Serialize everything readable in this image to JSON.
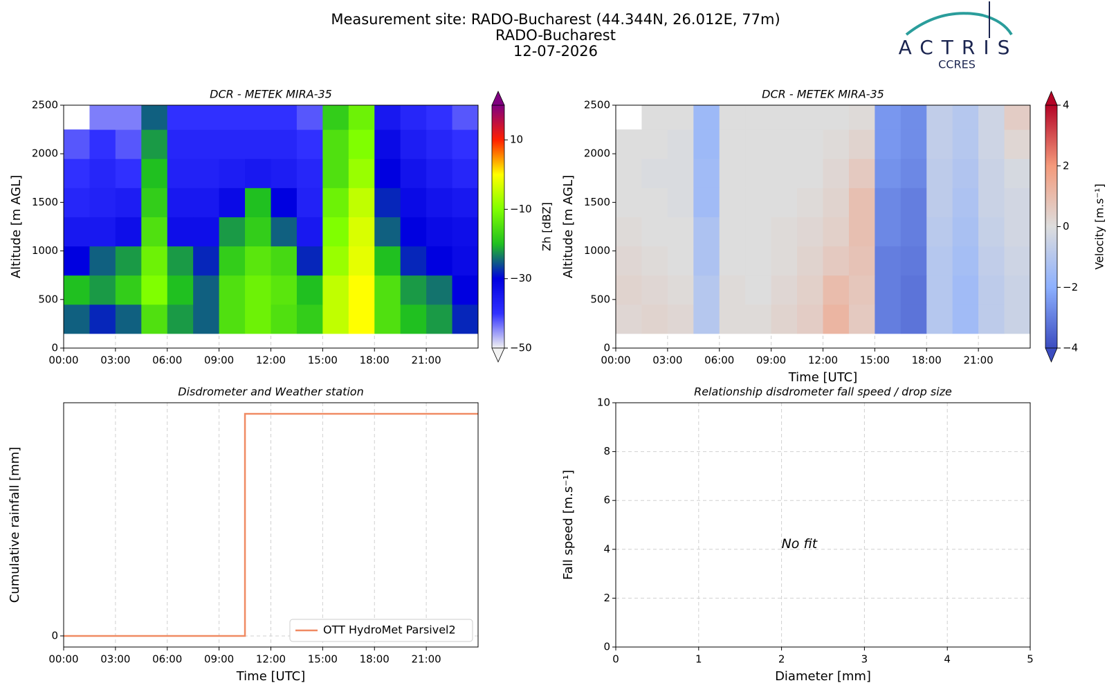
{
  "header": {
    "title": [
      "Measurement site: RADO-Bucharest (44.344N, 26.012E, 77m)",
      "RADO-Bucharest",
      "12-07-2026"
    ],
    "logo": {
      "name": "ACTRIS",
      "subtitle": "CCRES"
    }
  },
  "chart_data": [
    {
      "type": "heatmap",
      "title": "DCR - METEK MIRA-35",
      "y_label": "Altitude [m AGL]",
      "x_edges": [
        0,
        1.5,
        3,
        4.5,
        6,
        7.5,
        9,
        10.5,
        12,
        13.5,
        15,
        16.5,
        18,
        19.5,
        21,
        22.5,
        24
      ],
      "y_edges": [
        150,
        450,
        750,
        1050,
        1350,
        1650,
        1950,
        2250,
        2500
      ],
      "z": [
        [
          -25,
          -28,
          -25,
          -15,
          -22,
          -25,
          -15,
          -12,
          -15,
          -18,
          -5,
          0,
          -15,
          -20,
          -22,
          -28
        ],
        [
          -20,
          -22,
          -18,
          -10,
          -20,
          -25,
          -15,
          -12,
          -14,
          -20,
          -5,
          0,
          -15,
          -22,
          -24,
          -30
        ],
        [
          -30,
          -25,
          -22,
          -12,
          -22,
          -28,
          -18,
          -14,
          -16,
          -28,
          -8,
          -2,
          -20,
          -28,
          -30,
          -32
        ],
        [
          -35,
          -35,
          -33,
          -15,
          -33,
          -33,
          -22,
          -18,
          -25,
          -35,
          -10,
          -3,
          -25,
          -30,
          -32,
          -33
        ],
        [
          -38,
          -37,
          -36,
          -18,
          -35,
          -35,
          -32,
          -20,
          -30,
          -37,
          -12,
          -5,
          -28,
          -32,
          -34,
          -35
        ],
        [
          -40,
          -38,
          -40,
          -20,
          -37,
          -37,
          -36,
          -35,
          -36,
          -38,
          -15,
          -8,
          -30,
          -34,
          -36,
          -38
        ],
        [
          -42,
          -40,
          -42,
          -22,
          -38,
          -38,
          -38,
          -38,
          -38,
          -40,
          -15,
          -10,
          -32,
          -36,
          -38,
          -40
        ],
        [
          null,
          -44,
          -44,
          -25,
          -40,
          -40,
          -40,
          -40,
          -40,
          -42,
          -18,
          -12,
          -35,
          -38,
          -40,
          -42
        ]
      ],
      "xlim": [
        0,
        24
      ],
      "ylim": [
        0,
        2500
      ],
      "xticks": [
        {
          "value": 0,
          "label": "00:00"
        },
        {
          "value": 3,
          "label": "03:00"
        },
        {
          "value": 6,
          "label": "06:00"
        },
        {
          "value": 9,
          "label": "09:00"
        },
        {
          "value": 12,
          "label": "12:00"
        },
        {
          "value": 15,
          "label": "15:00"
        },
        {
          "value": 18,
          "label": "18:00"
        },
        {
          "value": 21,
          "label": "21:00"
        }
      ],
      "yticks": [
        0,
        500,
        1000,
        1500,
        2000,
        2500
      ],
      "grid": true,
      "colorbar": {
        "label": "Zh [dBZ]",
        "lim": [
          -50,
          20
        ],
        "ticks": [
          {
            "value": -50,
            "label": "−50"
          },
          {
            "value": -30,
            "label": "−30"
          },
          {
            "value": -10,
            "label": "−10"
          },
          10
        ],
        "colors": [
          "#f2f2f2",
          "#3030ff",
          "#0000e0",
          "#20c020",
          "#80ff00",
          "#ffff00",
          "#ff2000",
          "#800080"
        ]
      }
    },
    {
      "type": "heatmap",
      "title": "DCR - METEK MIRA-35",
      "y_label": "Altitude [m AGL]",
      "x_label": "Time [UTC]",
      "x_edges": [
        0,
        1.5,
        3,
        4.5,
        6,
        7.5,
        9,
        10.5,
        12,
        13.5,
        15,
        16.5,
        18,
        19.5,
        21,
        22.5,
        24
      ],
      "y_edges": [
        150,
        450,
        750,
        1050,
        1350,
        1650,
        1950,
        2250,
        2500
      ],
      "z": [
        [
          0.2,
          0.3,
          0.2,
          -1,
          0.1,
          0.1,
          0.3,
          0.5,
          1.2,
          0.6,
          -3,
          -3.2,
          -1,
          -1.5,
          -0.8,
          -0.5
        ],
        [
          0.3,
          0.2,
          0.1,
          -1,
          0.1,
          0,
          0.2,
          0.4,
          1,
          0.7,
          -3,
          -3.2,
          -1,
          -1.5,
          -0.8,
          -0.5
        ],
        [
          0.2,
          0.1,
          0,
          -1.2,
          0,
          0,
          0.1,
          0.3,
          0.6,
          0.8,
          -3,
          -3.1,
          -1,
          -1.4,
          -0.7,
          -0.4
        ],
        [
          0.1,
          0,
          0,
          -1.2,
          0,
          0,
          0.1,
          0.2,
          0.4,
          0.9,
          -2.8,
          -3,
          -0.9,
          -1.3,
          -0.6,
          -0.3
        ],
        [
          0,
          0,
          -0.1,
          -1.5,
          0,
          0,
          0,
          0.1,
          0.3,
          0.9,
          -2.8,
          -3,
          -0.8,
          -1.2,
          -0.5,
          -0.3
        ],
        [
          0,
          -0.1,
          -0.1,
          -1.5,
          0,
          0,
          0,
          0,
          0.2,
          0.6,
          -2.6,
          -2.8,
          -0.8,
          -1.1,
          -0.5,
          -0.2
        ],
        [
          0,
          0,
          -0.1,
          -1.6,
          0,
          0,
          0,
          0,
          0.1,
          0.3,
          -2.5,
          -2.7,
          -0.7,
          -1,
          -0.4,
          0.2
        ],
        [
          null,
          0,
          0,
          -1.6,
          0,
          0,
          0,
          0,
          0,
          0.1,
          -2.5,
          -2.7,
          -0.7,
          -1,
          -0.4,
          0.5
        ]
      ],
      "xlim": [
        0,
        24
      ],
      "ylim": [
        0,
        2500
      ],
      "xticks": [
        {
          "value": 0,
          "label": "00:00"
        },
        {
          "value": 3,
          "label": "03:00"
        },
        {
          "value": 6,
          "label": "06:00"
        },
        {
          "value": 9,
          "label": "09:00"
        },
        {
          "value": 12,
          "label": "12:00"
        },
        {
          "value": 15,
          "label": "15:00"
        },
        {
          "value": 18,
          "label": "18:00"
        },
        {
          "value": 21,
          "label": "21:00"
        }
      ],
      "yticks": [
        0,
        500,
        1000,
        1500,
        2000,
        2500
      ],
      "grid": true,
      "colorbar": {
        "label": "Velocity [m.s⁻¹]",
        "lim": [
          -4,
          4
        ],
        "ticks": [
          {
            "value": -4,
            "label": "−4"
          },
          {
            "value": -2,
            "label": "−2"
          },
          0,
          2,
          4
        ],
        "colors": [
          "#3b4cc0",
          "#8db0fe",
          "#dddddd",
          "#f49a7b",
          "#b40426"
        ]
      }
    },
    {
      "type": "line",
      "title": "Disdrometer and Weather station",
      "x_label": "Time [UTC]",
      "y_label": "Cumulative rainfall [mm]",
      "x": [
        0,
        10.5,
        24
      ],
      "step": "post",
      "series": [
        {
          "name": "OTT HydroMet Parsivel2",
          "color": "#f08a62",
          "values": [
            0,
            1,
            1
          ]
        }
      ],
      "xlim": [
        0,
        24
      ],
      "ylim": [
        -0.05,
        1.05
      ],
      "xticks": [
        {
          "value": 0,
          "label": "00:00"
        },
        {
          "value": 3,
          "label": "03:00"
        },
        {
          "value": 6,
          "label": "06:00"
        },
        {
          "value": 9,
          "label": "09:00"
        },
        {
          "value": 12,
          "label": "12:00"
        },
        {
          "value": 15,
          "label": "15:00"
        },
        {
          "value": 18,
          "label": "18:00"
        },
        {
          "value": 21,
          "label": "21:00"
        }
      ],
      "yticks": [
        0
      ],
      "grid": true,
      "legend": "lower-right"
    },
    {
      "type": "scatter",
      "title": "Relationship disdrometer fall speed / drop size",
      "x_label": "Diameter [mm]",
      "y_label": "Fall speed [m.s⁻¹]",
      "annotation": "No fit",
      "xlim": [
        0,
        5
      ],
      "ylim": [
        0,
        10
      ],
      "xticks": [
        0,
        1,
        2,
        3,
        4,
        5
      ],
      "yticks": [
        0,
        2,
        4,
        6,
        8,
        10
      ],
      "grid": true
    }
  ]
}
